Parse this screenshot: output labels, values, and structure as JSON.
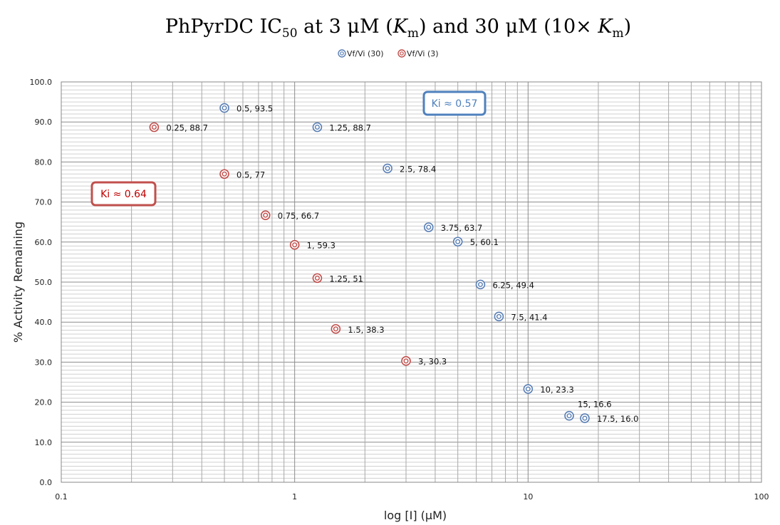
{
  "chart_data": {
    "type": "scatter",
    "title": "PhPyrDC IC50 at 3 μM (Km) and 30 μM (10× Km)",
    "xlabel": "log [I] (μM)",
    "ylabel": "% Activity Remaining",
    "xscale": "log",
    "xlim": [
      0.1,
      100
    ],
    "ylim": [
      0,
      100
    ],
    "x_tick_labels": [
      "0.1",
      "1",
      "10",
      "100"
    ],
    "y_tick_labels": [
      "0.0",
      "10.0",
      "20.0",
      "30.0",
      "40.0",
      "50.0",
      "60.0",
      "70.0",
      "80.0",
      "90.0",
      "100.0"
    ],
    "grid": true,
    "legend_position": "top-center",
    "series": [
      {
        "name": "Vf/Vi (30)",
        "color": "#5a7fb5",
        "points": [
          {
            "x": 0.5,
            "y": 93.5,
            "label": "0.5, 93.5"
          },
          {
            "x": 1.25,
            "y": 88.7,
            "label": "1.25, 88.7"
          },
          {
            "x": 2.5,
            "y": 78.4,
            "label": "2.5, 78.4"
          },
          {
            "x": 3.75,
            "y": 63.7,
            "label": "3.75, 63.7"
          },
          {
            "x": 5,
            "y": 60.1,
            "label": "5, 60.1"
          },
          {
            "x": 6.25,
            "y": 49.4,
            "label": "6.25, 49.4"
          },
          {
            "x": 7.5,
            "y": 41.4,
            "label": "7.5, 41.4"
          },
          {
            "x": 10,
            "y": 23.3,
            "label": "10, 23.3"
          },
          {
            "x": 15,
            "y": 16.6,
            "label": "15, 16.6"
          },
          {
            "x": 17.5,
            "y": 16.0,
            "label": "17.5, 16.0"
          }
        ]
      },
      {
        "name": "Vf/Vi (3)",
        "color": "#c0504d",
        "points": [
          {
            "x": 0.25,
            "y": 88.7,
            "label": "0.25, 88.7"
          },
          {
            "x": 0.5,
            "y": 77,
            "label": "0.5, 77"
          },
          {
            "x": 0.75,
            "y": 66.7,
            "label": "0.75, 66.7"
          },
          {
            "x": 1,
            "y": 59.3,
            "label": "1, 59.3"
          },
          {
            "x": 1.25,
            "y": 51,
            "label": "1.25, 51"
          },
          {
            "x": 1.5,
            "y": 38.3,
            "label": "1.5, 38.3"
          },
          {
            "x": 3,
            "y": 30.3,
            "label": "3, 30.3"
          }
        ]
      }
    ],
    "annotations": [
      {
        "text": "Ki ≈ 0.57",
        "color": "#4f81bd",
        "text_color": "#4f81bd"
      },
      {
        "text": "Ki ≈ 0.64",
        "color": "#c0504d",
        "text_color": "#c00000"
      }
    ]
  }
}
